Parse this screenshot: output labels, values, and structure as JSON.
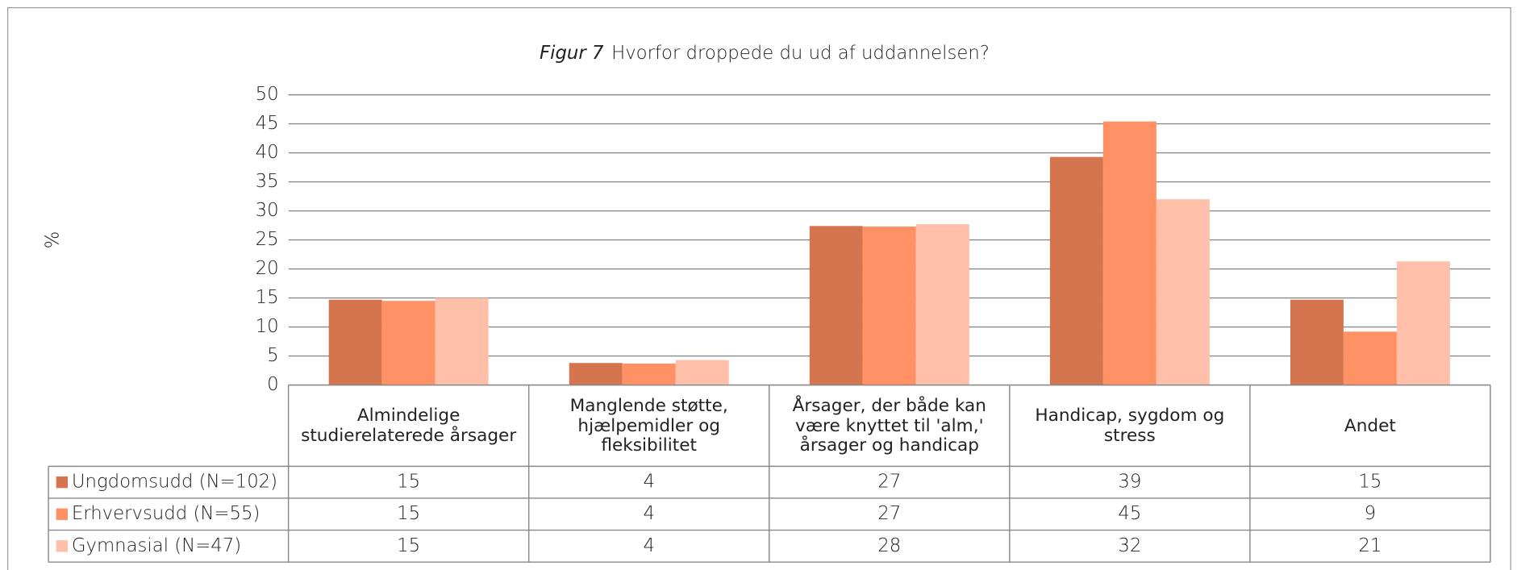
{
  "chart_data": {
    "type": "bar",
    "title_label": "Figur 7",
    "title": "Hvorfor droppede du ud af uddannelsen?",
    "y_label": "%",
    "categories": [
      "Almindelige studierelaterede årsager",
      "Manglende støtte, hjælpemidler og fleksibilitet",
      "Årsager, der både kan være knyttet til 'alm,' årsager og handicap",
      "Handicap, sygdom og stress",
      "Andet"
    ],
    "series": [
      {
        "name": "Ungdomsudd (N=102)",
        "color": "#d4754f",
        "values": [
          14.7,
          3.8,
          27.4,
          39.3,
          14.7
        ],
        "value_labels": [
          "15",
          "4",
          "27",
          "39",
          "15"
        ]
      },
      {
        "name": "Erhvervsudd (N=55)",
        "color": "#ff9164",
        "values": [
          14.5,
          3.7,
          27.3,
          45.4,
          9.2
        ],
        "value_labels": [
          "15",
          "4",
          "27",
          "45",
          "9"
        ]
      },
      {
        "name": "Gymnasial (N=47)",
        "color": "#ffbfa8",
        "values": [
          15.0,
          4.3,
          27.7,
          32.0,
          21.3
        ],
        "value_labels": [
          "15",
          "4",
          "28",
          "32",
          "21"
        ]
      }
    ],
    "ylim": [
      0,
      50
    ],
    "yticks": [
      0,
      5,
      10,
      15,
      20,
      25,
      30,
      35,
      40,
      45,
      50
    ],
    "grid": true
  }
}
